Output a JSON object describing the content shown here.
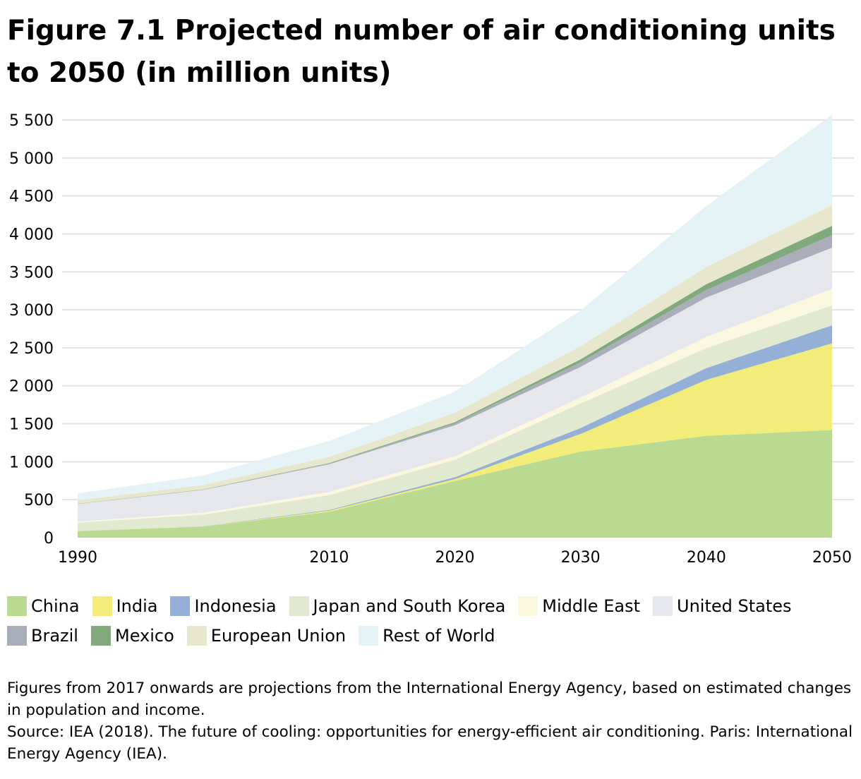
{
  "chart_data": {
    "type": "area",
    "stacked": true,
    "title": "Figure 7.1 Projected number of air conditioning units to 2050 (in million units)",
    "x": [
      1990,
      2000,
      2010,
      2020,
      2030,
      2040,
      2050
    ],
    "x_ticks": [
      "1990",
      "2010",
      "2020",
      "2030",
      "2040",
      "2050"
    ],
    "x_tick_values": [
      1990,
      2010,
      2020,
      2030,
      2040,
      2050
    ],
    "y_ticks": [
      "0",
      "500",
      "1 000",
      "1 500",
      "2 000",
      "2 500",
      "3 000",
      "3 500",
      "4 000",
      "4 500",
      "5 000",
      "5 500"
    ],
    "ylim": [
      0,
      5500
    ],
    "xlim": [
      1990,
      2050
    ],
    "grid": true,
    "legend_placement": "bottom",
    "series": [
      {
        "name": "China",
        "color": "#bada91",
        "values": [
          86,
          146,
          340,
          746,
          1133,
          1341,
          1418
        ]
      },
      {
        "name": "India",
        "color": "#f2ed7a",
        "values": [
          1,
          2,
          15,
          25,
          233,
          737,
          1140
        ]
      },
      {
        "name": "Indonesia",
        "color": "#95b0d6",
        "values": [
          1,
          2,
          10,
          25,
          77,
          155,
          238
        ]
      },
      {
        "name": "Japan and South Korea",
        "color": "#e1ead0",
        "values": [
          110,
          154,
          195,
          229,
          325,
          263,
          263
        ]
      },
      {
        "name": "Middle East",
        "color": "#faf9e0",
        "values": [
          13,
          24,
          41,
          46,
          78,
          146,
          218
        ]
      },
      {
        "name": "United States",
        "color": "#e6e7ec",
        "values": [
          232,
          301,
          365,
          409,
          402,
          520,
          541
        ]
      },
      {
        "name": "Brazil",
        "color": "#aaaeba",
        "values": [
          3,
          4,
          9,
          25,
          62,
          99,
          165
        ]
      },
      {
        "name": "Mexico",
        "color": "#80aa7c",
        "values": [
          2,
          3,
          8,
          16,
          38,
          77,
          123
        ]
      },
      {
        "name": "European Union",
        "color": "#e7e7cd",
        "values": [
          43,
          59,
          80,
          123,
          173,
          226,
          273
        ]
      },
      {
        "name": "Rest of World",
        "color": "#e5f3f7",
        "values": [
          92,
          124,
          210,
          279,
          470,
          805,
          1189
        ]
      }
    ]
  },
  "notes": {
    "line1": "Figures from 2017 onwards are projections from the International Energy Agency, based on estimated changes in population and income.",
    "line2": "Source: IEA (2018). The future of cooling: opportunities for energy-efficient air conditioning. Paris: International Energy Agency (IEA)."
  }
}
